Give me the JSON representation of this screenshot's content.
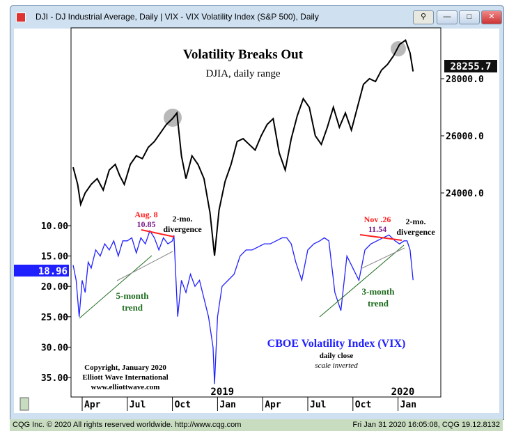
{
  "window": {
    "title": "DJI - DJ Industrial Average, Daily  |  VIX - VIX Volatility Index (S&P 500), Daily",
    "buttons": [
      "link",
      "—",
      "□",
      "✕"
    ]
  },
  "status_bar": {
    "left": "CQG Inc. © 2020 All rights reserved worldwide. http://www.cqg.com",
    "right": "Fri Jan 31 2020 16:05:08, CQG 19.12.8132"
  },
  "chart_data": {
    "type": "line",
    "title": "Volatility Breaks Out",
    "subtitle": "DJIA, daily range",
    "x_ticks": [
      "Apr",
      "Jul",
      "Oct",
      "Jan",
      "Apr",
      "Jul",
      "Oct",
      "Jan"
    ],
    "x_tick_months": [
      3,
      6,
      9,
      12,
      15,
      18,
      21,
      24
    ],
    "year_labels": [
      {
        "label": "2019",
        "month": 12
      },
      {
        "label": "2020",
        "month": 24
      }
    ],
    "x_unit": "months since Jan 2018",
    "djia": {
      "name": "DJIA",
      "last": "28255.7",
      "axis_ticks": [
        "28000.0",
        "26000.0",
        "24000.0"
      ],
      "axis_values": [
        28000,
        26000,
        24000
      ],
      "x": [
        2.4,
        2.7,
        2.9,
        3.2,
        3.6,
        4.0,
        4.4,
        4.8,
        5.2,
        5.5,
        5.8,
        6.2,
        6.6,
        7.0,
        7.4,
        7.8,
        8.2,
        8.6,
        9.0,
        9.3,
        9.6,
        9.9,
        10.3,
        10.7,
        11.1,
        11.5,
        11.8,
        12.1,
        12.5,
        12.9,
        13.3,
        13.7,
        14.1,
        14.5,
        14.9,
        15.3,
        15.7,
        16.1,
        16.5,
        16.9,
        17.3,
        17.7,
        18.1,
        18.5,
        18.9,
        19.3,
        19.7,
        20.1,
        20.5,
        20.9,
        21.3,
        21.7,
        22.1,
        22.5,
        22.9,
        23.3,
        23.7,
        24.1,
        24.5,
        24.8,
        25.0
      ],
      "y": [
        24900,
        24300,
        23600,
        24000,
        24300,
        24500,
        24100,
        24800,
        25000,
        24600,
        24300,
        25000,
        25300,
        25200,
        25600,
        25800,
        26100,
        26400,
        26600,
        26800,
        25300,
        24500,
        25300,
        25000,
        24500,
        23300,
        21800,
        23400,
        24400,
        25000,
        25800,
        25900,
        25700,
        25500,
        26000,
        26400,
        26600,
        25400,
        24800,
        25900,
        26700,
        27300,
        27000,
        26000,
        25700,
        26300,
        27000,
        26300,
        26800,
        26200,
        27000,
        27800,
        28000,
        27900,
        28300,
        28500,
        28800,
        29200,
        29350,
        28900,
        28255
      ]
    },
    "vix": {
      "name": "CBOE Volatility Index (VIX)",
      "note1": "daily close",
      "note2": "scale inverted",
      "last": "18.96",
      "axis_ticks": [
        "10.00",
        "15.00",
        "20.00",
        "25.00",
        "30.00",
        "35.00"
      ],
      "axis_values": [
        10,
        15,
        20,
        25,
        30,
        35
      ],
      "x": [
        2.4,
        2.6,
        2.8,
        3.0,
        3.2,
        3.4,
        3.6,
        3.9,
        4.2,
        4.5,
        4.8,
        5.1,
        5.4,
        5.7,
        6.0,
        6.3,
        6.6,
        6.9,
        7.2,
        7.5,
        7.8,
        8.1,
        8.4,
        8.7,
        9.0,
        9.1,
        9.35,
        9.6,
        9.9,
        10.2,
        10.5,
        10.8,
        11.1,
        11.4,
        11.7,
        11.8,
        12.0,
        12.3,
        12.7,
        13.1,
        13.5,
        13.9,
        14.3,
        14.7,
        15.1,
        15.5,
        15.9,
        16.3,
        16.6,
        16.9,
        17.2,
        17.6,
        18.0,
        18.4,
        18.8,
        19.1,
        19.4,
        19.8,
        20.2,
        20.6,
        21.0,
        21.4,
        21.8,
        22.2,
        22.6,
        23.0,
        23.4,
        23.8,
        24.1,
        24.4,
        24.6,
        24.8,
        25.0
      ],
      "y": [
        16.5,
        19,
        25.0,
        19,
        21,
        16,
        17,
        14,
        15,
        13,
        14,
        12.5,
        15,
        12.5,
        12.5,
        12,
        14.5,
        12,
        13,
        10.85,
        12,
        14,
        12,
        13,
        12.5,
        11.6,
        24.98,
        19,
        21,
        18,
        20,
        19,
        22,
        25,
        30,
        36.07,
        25,
        20,
        19,
        18,
        15,
        14,
        14,
        13.5,
        13,
        13,
        12.5,
        12,
        12,
        13,
        16,
        19,
        14,
        13,
        12.5,
        12,
        12.5,
        21,
        24,
        15,
        17,
        19,
        14,
        13,
        12.5,
        12,
        11.54,
        12.5,
        13,
        12.5,
        12.5,
        14,
        18.96
      ]
    },
    "annotations": {
      "aug": {
        "date": "Aug. 8",
        "value": "10.85",
        "label": "2-mo.",
        "label2": "divergence",
        "trend1": "5-month",
        "trend2": "trend"
      },
      "nov": {
        "date": "Nov .26",
        "value": "11.54",
        "label": "2-mo.",
        "label2": "divergence",
        "trend1": "3-month",
        "trend2": "trend"
      }
    },
    "copyright": [
      "Copyright, January 2020",
      "Elliott Wave International",
      "www.elliottwave.com"
    ],
    "colors": {
      "djia": "#000000",
      "vix": "#2020ff",
      "divergence": "#ff2020",
      "trend": "#1d6b1d",
      "value": "#7a1a8a",
      "grid": "#c8d8c8"
    }
  }
}
